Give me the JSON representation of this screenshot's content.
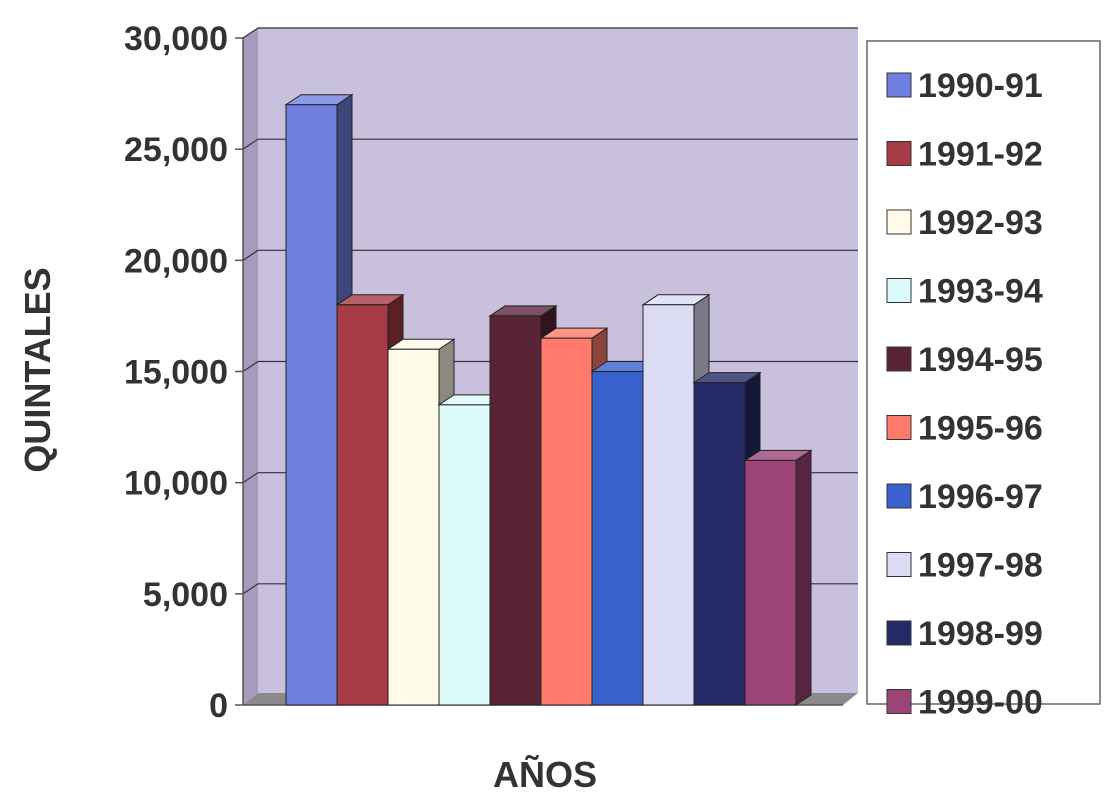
{
  "chart_data": {
    "type": "bar",
    "style": "3d-clustered",
    "title": "",
    "xlabel": "AÑOS",
    "ylabel": "QUINTALES",
    "ylim": [
      0,
      30000
    ],
    "yticks": [
      "30,000",
      "25,000",
      "20,000",
      "15,000",
      "10,000",
      "5,000",
      "0"
    ],
    "ytick_values": [
      30000,
      25000,
      20000,
      15000,
      10000,
      5000,
      0
    ],
    "grid": true,
    "legend_position": "right",
    "series": [
      {
        "name": "1990-91",
        "value": 27000,
        "color": "#6f7fe0"
      },
      {
        "name": "1991-92",
        "value": 18000,
        "color": "#a63a45"
      },
      {
        "name": "1992-93",
        "value": 16000,
        "color": "#fffbe8"
      },
      {
        "name": "1993-94",
        "value": 13500,
        "color": "#ddfafa"
      },
      {
        "name": "1994-95",
        "value": 17500,
        "color": "#5a2438"
      },
      {
        "name": "1995-96",
        "value": 16500,
        "color": "#ff7a6a"
      },
      {
        "name": "1996-97",
        "value": 15000,
        "color": "#3a62cf"
      },
      {
        "name": "1997-98",
        "value": 18000,
        "color": "#dcdcf5"
      },
      {
        "name": "1998-99",
        "value": 14500,
        "color": "#232a66"
      },
      {
        "name": "1999-00",
        "value": 11000,
        "color": "#9c4477"
      }
    ]
  }
}
